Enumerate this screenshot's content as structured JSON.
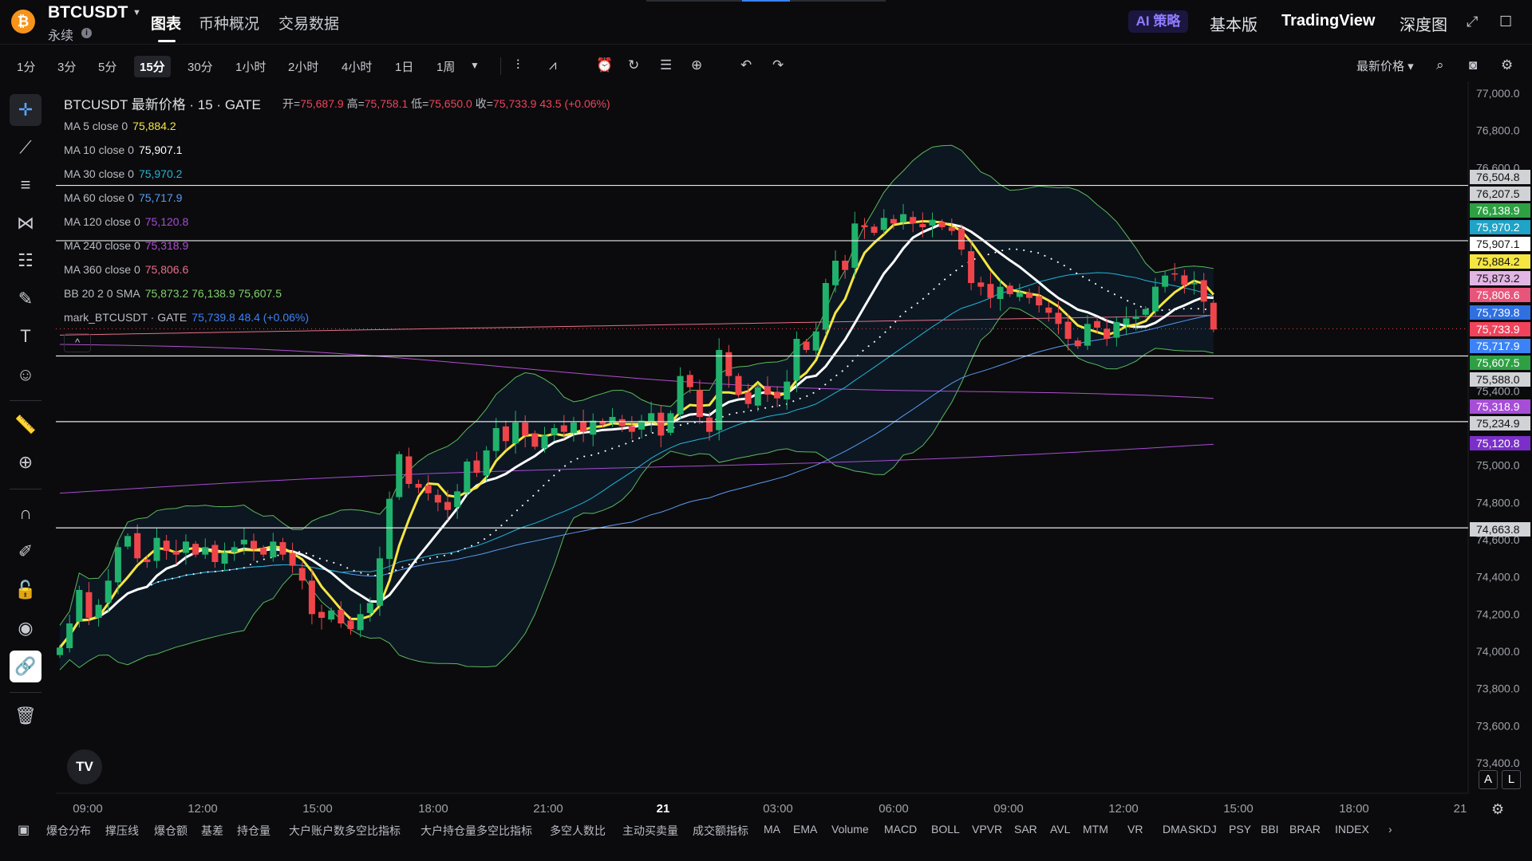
{
  "header": {
    "symbol": "BTCUSDT",
    "contract_type": "永续",
    "tabs": [
      "图表",
      "币种概况",
      "交易数据"
    ],
    "ai_button": "AI 策略",
    "links": [
      "基本版",
      "TradingView",
      "深度图"
    ]
  },
  "toolbar": {
    "timeframes": [
      "1分",
      "3分",
      "5分",
      "15分",
      "30分",
      "1小时",
      "2小时",
      "4小时",
      "1日",
      "1周"
    ],
    "active_timeframe": "15分",
    "price_mode": "最新价格"
  },
  "legend": {
    "title": "BTCUSDT 最新价格 · 15 · GATE",
    "open_label": "开=",
    "open": "75,687.9",
    "high_label": "高=",
    "high": "75,758.1",
    "low_label": "低=",
    "low": "75,650.0",
    "close_label": "收=",
    "close": "75,733.9",
    "change": "43.5 (+0.06%)",
    "indicators": [
      {
        "label": "MA 5 close 0",
        "value": "75,884.2",
        "color": "#f5e642"
      },
      {
        "label": "MA 10 close 0",
        "value": "75,907.1",
        "color": "#ffffff"
      },
      {
        "label": "MA 30 close 0",
        "value": "75,970.2",
        "color": "#22b5d6"
      },
      {
        "label": "MA 60 close 0",
        "value": "75,717.9",
        "color": "#5a9bf0"
      },
      {
        "label": "MA 120 close 0",
        "value": "75,120.8",
        "color": "#a64dd6"
      },
      {
        "label": "MA 240 close 0",
        "value": "75,318.9",
        "color": "#b04fd0"
      },
      {
        "label": "MA 360 close 0",
        "value": "75,806.6",
        "color": "#e86f8a"
      },
      {
        "label": "BB 20 2 0 SMA",
        "value": "75,873.2  76,138.9  75,607.5",
        "color": "#7fd36a"
      },
      {
        "label": "mark_BTCUSDT · GATE",
        "value": "75,739.8  48.4 (+0.06%)",
        "color": "#3b82f6"
      }
    ]
  },
  "price_axis": {
    "ticks": [
      "77,000.0",
      "76,800.0",
      "76,600.0",
      "75,400.0",
      "75,000.0",
      "74,800.0",
      "74,600.0",
      "74,400.0",
      "74,200.0",
      "74,000.0",
      "73,800.0",
      "73,600.0",
      "73,400.0"
    ],
    "tags": [
      {
        "value": "76,504.8",
        "color": "#d0d2d6"
      },
      {
        "value": "76,207.5",
        "color": "#d0d2d6"
      },
      {
        "value": "76,138.9",
        "color": "#2ea043"
      },
      {
        "value": "75,970.2",
        "color": "#1fa3c7"
      },
      {
        "value": "75,907.1",
        "color": "#ffffff"
      },
      {
        "value": "75,884.2",
        "color": "#f5e642"
      },
      {
        "value": "75,873.2",
        "color": "#e2b6e4"
      },
      {
        "value": "75,806.6",
        "color": "#e8557a"
      },
      {
        "value": "75,739.8",
        "color": "#2f6fe0"
      },
      {
        "value": "75,733.9",
        "color": "#f0435b"
      },
      {
        "value": "75,717.9",
        "color": "#3b82f6"
      },
      {
        "value": "75,607.5",
        "color": "#2ea043"
      },
      {
        "value": "75,588.0",
        "color": "#d0d2d6"
      },
      {
        "value": "75,318.9",
        "color": "#a64dd6"
      },
      {
        "value": "75,234.9",
        "color": "#d0d2d6"
      },
      {
        "value": "75,120.8",
        "color": "#7b2fc9"
      },
      {
        "value": "74,663.8",
        "color": "#d0d2d6"
      }
    ]
  },
  "time_axis": [
    "09:00",
    "12:00",
    "15:00",
    "18:00",
    "21:00",
    "21",
    "03:00",
    "06:00",
    "09:00",
    "12:00",
    "15:00",
    "18:00",
    "21"
  ],
  "bottom_indicators": [
    "爆仓分布",
    "撑压线",
    "爆仓额",
    "基差",
    "持仓量",
    "大户账户数多空比指标",
    "大户持仓量多空比指标",
    "多空人数比",
    "主动买卖量",
    "成交额指标",
    "MA",
    "EMA",
    "Volume",
    "MACD",
    "BOLL",
    "VPVR",
    "SAR",
    "AVL",
    "MTM",
    "VR",
    "DMA",
    "SKDJ",
    "PSY",
    "BBI",
    "BRAR",
    "INDEX"
  ],
  "chart_data": {
    "type": "candlestick",
    "symbol": "BTCUSDT",
    "interval": "15",
    "ylim": [
      73400,
      77000
    ],
    "horizontal_lines": [
      76504.8,
      76207.5,
      75588.0,
      75234.9,
      74663.8
    ],
    "last_price": 75733.9,
    "closes_approx": [
      74020,
      74150,
      74330,
      74180,
      74250,
      74380,
      74560,
      74620,
      74500,
      74480,
      74610,
      74540,
      74520,
      74590,
      74520,
      74560,
      74480,
      74530,
      74560,
      74600,
      74550,
      74520,
      74590,
      74520,
      74460,
      74380,
      74200,
      74180,
      74220,
      74150,
      74120,
      74200,
      74260,
      74500,
      74820,
      75060,
      74900,
      74880,
      74850,
      74800,
      74760,
      74860,
      75020,
      74960,
      75080,
      75200,
      75130,
      75230,
      75160,
      75100,
      75160,
      75200,
      75180,
      75230,
      75180,
      75240,
      75220,
      75260,
      75210,
      75180,
      75240,
      75280,
      75160,
      75280,
      75480,
      75420,
      75260,
      75180,
      75620,
      75480,
      75380,
      75330,
      75420,
      75380,
      75360,
      75450,
      75680,
      75620,
      75720,
      75980,
      76100,
      76050,
      76300,
      76280,
      76250,
      76330,
      76300,
      76350,
      76300,
      76280,
      76320,
      76280,
      76260,
      76160,
      75980,
      75960,
      75900,
      75960,
      75920,
      75930,
      75900,
      75860,
      75820,
      75760,
      75680,
      75640,
      75760,
      75740,
      75680,
      75770,
      75790,
      75800,
      75840,
      75960,
      76020,
      76030,
      75970,
      75980,
      75880,
      75730
    ]
  }
}
